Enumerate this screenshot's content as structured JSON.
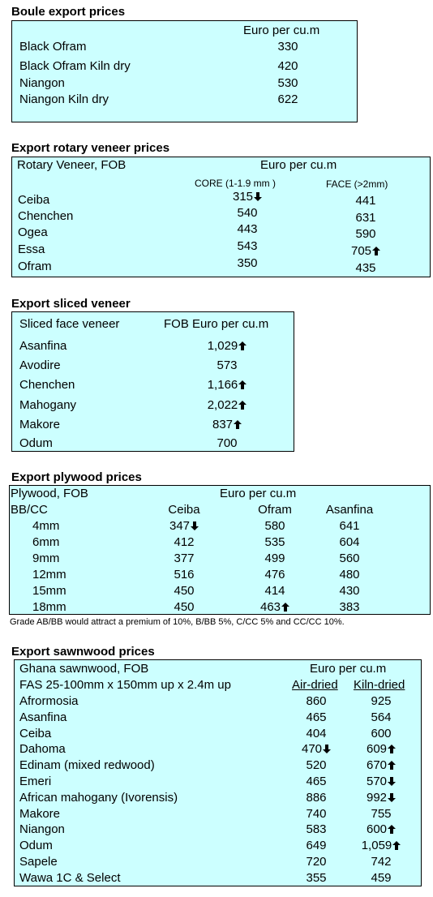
{
  "boule": {
    "title": "Boule export prices",
    "unit": "Euro per cu.m",
    "rows": [
      {
        "name": "Black Ofram",
        "price": "330"
      },
      {
        "name": "Black Ofram  Kiln dry",
        "price": "420"
      },
      {
        "name": "Niangon",
        "price": "530"
      },
      {
        "name": "Niangon Kiln dry",
        "price": "622"
      }
    ]
  },
  "rotary": {
    "title": "Export rotary veneer prices",
    "header": "Rotary Veneer,  FOB",
    "unit": "Euro  per cu.m",
    "col1": "CORE (1-1.9 mm )",
    "col2": "FACE (>2mm)",
    "rows": [
      {
        "name": "Ceiba",
        "core": "315",
        "core_trend": "down",
        "face": "441",
        "face_trend": ""
      },
      {
        "name": "Chenchen",
        "core": "540",
        "core_trend": "",
        "face": "631",
        "face_trend": ""
      },
      {
        "name": "Ogea",
        "core": "443",
        "core_trend": "",
        "face": "590",
        "face_trend": ""
      },
      {
        "name": "Essa",
        "core": "543",
        "core_trend": "",
        "face": "705",
        "face_trend": "up"
      },
      {
        "name": "Ofram",
        "core": "350",
        "core_trend": "",
        "face": "435",
        "face_trend": ""
      }
    ]
  },
  "sliced": {
    "title": "Export sliced veneer",
    "header": "Sliced face veneer",
    "unit": "FOB Euro per cu.m",
    "rows": [
      {
        "name": "Asanfina",
        "price": "1,029",
        "trend": "up"
      },
      {
        "name": "Avodire",
        "price": "573",
        "trend": ""
      },
      {
        "name": "Chenchen",
        "price": "1,166",
        "trend": "up"
      },
      {
        "name": "Mahogany",
        "price": "2,022",
        "trend": "up"
      },
      {
        "name": "Makore",
        "price": "837",
        "trend": "up"
      },
      {
        "name": "Odum",
        "price": "700",
        "trend": ""
      }
    ]
  },
  "plywood": {
    "title": "Export plywood prices",
    "header": "Plywood, FOB",
    "unit": "Euro per cu.m",
    "grade": "BB/CC",
    "cols": [
      "Ceiba",
      "Ofram",
      "Asanfina"
    ],
    "rows": [
      {
        "size": "4mm",
        "v": [
          "347",
          "580",
          "641"
        ],
        "trend": [
          "down",
          "",
          ""
        ]
      },
      {
        "size": "6mm",
        "v": [
          "412",
          "535",
          "604"
        ],
        "trend": [
          "",
          "",
          ""
        ]
      },
      {
        "size": "9mm",
        "v": [
          "377",
          "499",
          "560"
        ],
        "trend": [
          "",
          "",
          ""
        ]
      },
      {
        "size": "12mm",
        "v": [
          "516",
          "476",
          "480"
        ],
        "trend": [
          "",
          "",
          ""
        ]
      },
      {
        "size": "15mm",
        "v": [
          "450",
          "414",
          "430"
        ],
        "trend": [
          "",
          "",
          ""
        ]
      },
      {
        "size": "18mm",
        "v": [
          "450",
          "463",
          "383"
        ],
        "trend": [
          "",
          "up",
          ""
        ]
      }
    ],
    "note": "Grade AB/BB would attract a premium of 10%, B/BB 5%, C/CC 5% and CC/CC 10%."
  },
  "sawn": {
    "title": "Export sawnwood prices",
    "header": "Ghana sawnwood, FOB",
    "unit": "Euro per cu.m",
    "spec": "FAS 25-100mm x 150mm up x 2.4m up",
    "col1": "Air-dried",
    "col2": "Kiln-dried",
    "rows": [
      {
        "name": "Afrormosia",
        "air": "860",
        "air_trend": "",
        "kiln": "925",
        "kiln_trend": ""
      },
      {
        "name": "Asanfina",
        "air": "465",
        "air_trend": "",
        "kiln": "564",
        "kiln_trend": ""
      },
      {
        "name": "Ceiba",
        "air": "404",
        "air_trend": "",
        "kiln": "600",
        "kiln_trend": ""
      },
      {
        "name": "Dahoma",
        "air": "470",
        "air_trend": "down",
        "kiln": "609",
        "kiln_trend": "up"
      },
      {
        "name": "Edinam (mixed redwood)",
        "air": "520",
        "air_trend": "",
        "kiln": "670",
        "kiln_trend": "up"
      },
      {
        "name": "Emeri",
        "air": "465",
        "air_trend": "",
        "kiln": "570",
        "kiln_trend": "down"
      },
      {
        "name": "African mahogany (Ivorensis)",
        "air": "886",
        "air_trend": "",
        "kiln": "992",
        "kiln_trend": "down"
      },
      {
        "name": "Makore",
        "air": "740",
        "air_trend": "",
        "kiln": "755",
        "kiln_trend": ""
      },
      {
        "name": "Niangon",
        "air": "583",
        "air_trend": "",
        "kiln": "600",
        "kiln_trend": "up"
      },
      {
        "name": "Odum",
        "air": "649",
        "air_trend": "",
        "kiln": "1,059",
        "kiln_trend": "up"
      },
      {
        "name": "Sapele",
        "air": "720",
        "air_trend": "",
        "kiln": "742",
        "kiln_trend": ""
      },
      {
        "name": "Wawa 1C & Select",
        "air": "355",
        "air_trend": "",
        "kiln": "459",
        "kiln_trend": ""
      }
    ]
  }
}
